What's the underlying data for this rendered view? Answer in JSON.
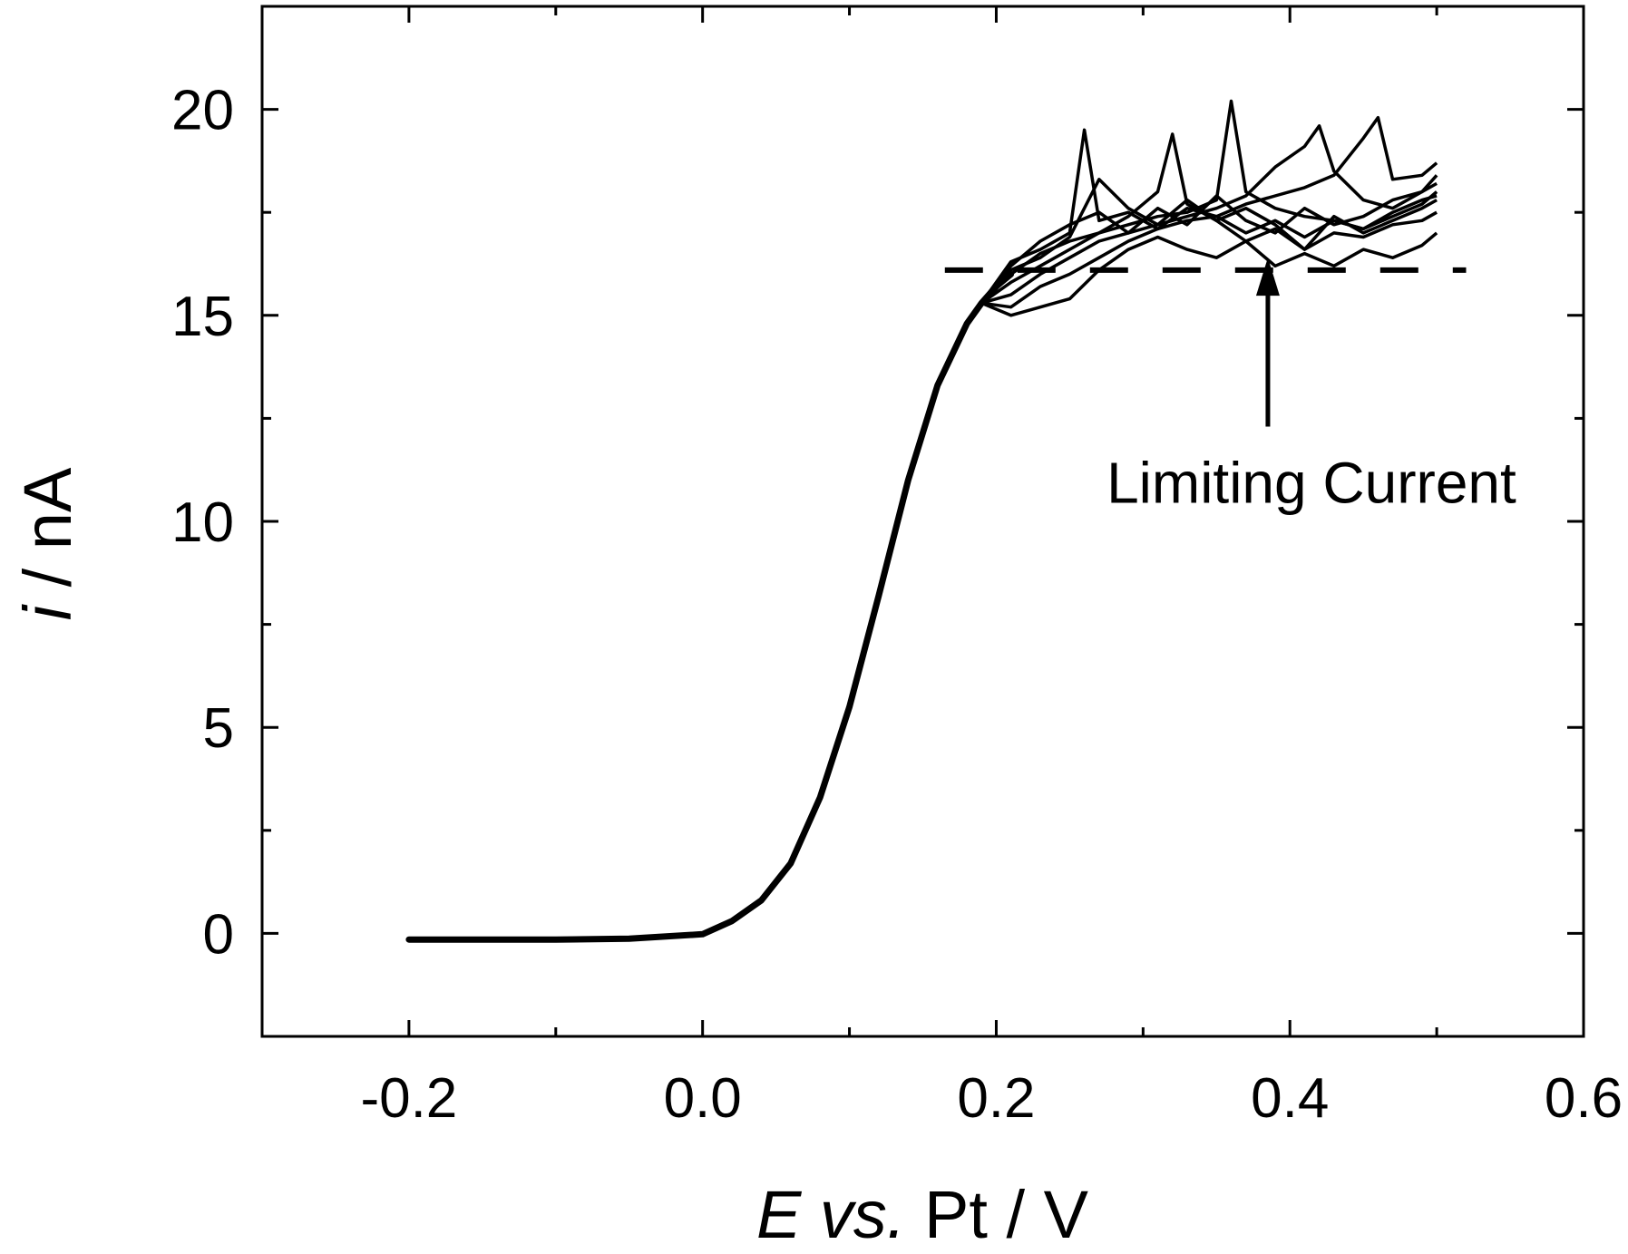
{
  "chart_data": {
    "type": "line",
    "title": "",
    "xlabel": {
      "italic": "E vs.",
      "rest": " Pt / V"
    },
    "ylabel": {
      "italic": "i",
      "rest": " / nA"
    },
    "xlim": [
      -0.3,
      0.6
    ],
    "ylim": [
      -2.5,
      22.5
    ],
    "x_ticks": [
      -0.2,
      0.0,
      0.2,
      0.4,
      0.6
    ],
    "x_tick_labels": [
      "-0.2",
      "0.0",
      "0.2",
      "0.4",
      "0.6"
    ],
    "x_minor_ticks": [
      -0.1,
      0.1,
      0.3,
      0.5
    ],
    "y_ticks": [
      0,
      5,
      10,
      15,
      20
    ],
    "y_tick_labels": [
      "0",
      "5",
      "10",
      "15",
      "20"
    ],
    "y_minor_ticks": [
      2.5,
      7.5,
      12.5,
      17.5
    ],
    "grid": false,
    "legend": "none",
    "rise": {
      "x": [
        -0.2,
        -0.1,
        -0.05,
        0.0,
        0.02,
        0.04,
        0.06,
        0.08,
        0.1,
        0.12,
        0.14,
        0.16,
        0.18,
        0.19,
        0.2,
        0.21
      ],
      "y": [
        -0.15,
        -0.15,
        -0.13,
        -0.02,
        0.3,
        0.8,
        1.7,
        3.3,
        5.5,
        8.2,
        11.0,
        13.3,
        14.8,
        15.3,
        15.7,
        16.0
      ]
    },
    "series": [
      {
        "x": [
          0.21,
          0.23,
          0.25,
          0.27,
          0.29,
          0.31,
          0.33,
          0.35,
          0.37,
          0.39,
          0.41,
          0.43,
          0.45,
          0.47,
          0.49,
          0.5
        ],
        "y": [
          16.2,
          16.8,
          17.2,
          17.5,
          17.0,
          17.6,
          17.2,
          17.9,
          17.3,
          17.0,
          17.6,
          17.2,
          17.4,
          17.8,
          18.0,
          18.2
        ]
      },
      {
        "x": [
          0.21,
          0.23,
          0.25,
          0.26,
          0.27,
          0.29,
          0.31,
          0.33,
          0.35,
          0.37,
          0.39,
          0.41,
          0.43,
          0.45,
          0.47,
          0.49,
          0.5
        ],
        "y": [
          16.3,
          16.6,
          17.0,
          19.5,
          17.3,
          17.5,
          17.1,
          17.6,
          17.4,
          17.0,
          17.3,
          16.9,
          17.3,
          17.1,
          17.5,
          17.8,
          17.9
        ]
      },
      {
        "x": [
          0.21,
          0.23,
          0.25,
          0.27,
          0.29,
          0.31,
          0.32,
          0.33,
          0.35,
          0.37,
          0.39,
          0.41,
          0.43,
          0.45,
          0.47,
          0.49,
          0.5
        ],
        "y": [
          16.0,
          16.5,
          16.8,
          17.0,
          17.4,
          18.0,
          19.4,
          17.7,
          17.3,
          17.6,
          17.2,
          16.6,
          17.4,
          17.0,
          17.3,
          17.6,
          17.8
        ]
      },
      {
        "x": [
          0.21,
          0.23,
          0.25,
          0.27,
          0.29,
          0.31,
          0.33,
          0.35,
          0.36,
          0.37,
          0.39,
          0.41,
          0.43,
          0.45,
          0.47,
          0.49,
          0.5
        ],
        "y": [
          15.8,
          16.2,
          16.6,
          17.0,
          17.2,
          17.4,
          17.5,
          17.8,
          20.2,
          18.0,
          17.6,
          17.4,
          17.3,
          17.1,
          17.4,
          17.7,
          18.0
        ]
      },
      {
        "x": [
          0.21,
          0.23,
          0.25,
          0.27,
          0.29,
          0.31,
          0.33,
          0.35,
          0.37,
          0.39,
          0.41,
          0.42,
          0.43,
          0.45,
          0.47,
          0.49,
          0.5
        ],
        "y": [
          15.5,
          16.0,
          16.4,
          16.8,
          17.0,
          17.2,
          17.4,
          17.6,
          17.9,
          18.6,
          19.1,
          19.6,
          18.5,
          17.8,
          17.6,
          18.0,
          18.4
        ]
      },
      {
        "x": [
          0.21,
          0.23,
          0.25,
          0.27,
          0.29,
          0.31,
          0.33,
          0.35,
          0.37,
          0.39,
          0.41,
          0.43,
          0.45,
          0.46,
          0.47,
          0.49,
          0.5
        ],
        "y": [
          15.2,
          15.7,
          16.0,
          16.4,
          16.8,
          17.1,
          17.3,
          17.4,
          17.7,
          17.9,
          18.1,
          18.4,
          19.3,
          19.8,
          18.3,
          18.4,
          18.7
        ]
      },
      {
        "x": [
          0.21,
          0.23,
          0.25,
          0.27,
          0.29,
          0.31,
          0.33,
          0.35,
          0.37,
          0.39,
          0.41,
          0.43,
          0.45,
          0.47,
          0.49,
          0.5
        ],
        "y": [
          15.0,
          15.2,
          15.4,
          16.1,
          16.6,
          16.9,
          16.6,
          16.4,
          16.8,
          16.2,
          16.5,
          16.2,
          16.6,
          16.4,
          16.7,
          17.0
        ]
      },
      {
        "x": [
          0.21,
          0.23,
          0.25,
          0.27,
          0.29,
          0.31,
          0.33,
          0.35,
          0.37,
          0.39,
          0.41,
          0.43,
          0.45,
          0.47,
          0.49,
          0.5
        ],
        "y": [
          16.1,
          16.4,
          16.9,
          18.3,
          17.6,
          17.2,
          17.8,
          17.3,
          16.8,
          17.1,
          16.6,
          17.0,
          16.9,
          17.2,
          17.3,
          17.5
        ]
      }
    ],
    "limiting_line": {
      "y": 16.1,
      "x_start": 0.165,
      "x_end": 0.52,
      "style": "dashed"
    },
    "annotation": {
      "text": "Limiting Current",
      "arrow_x": 0.385,
      "arrow_from_y": 12.3,
      "arrow_to_y": 16.4
    }
  }
}
